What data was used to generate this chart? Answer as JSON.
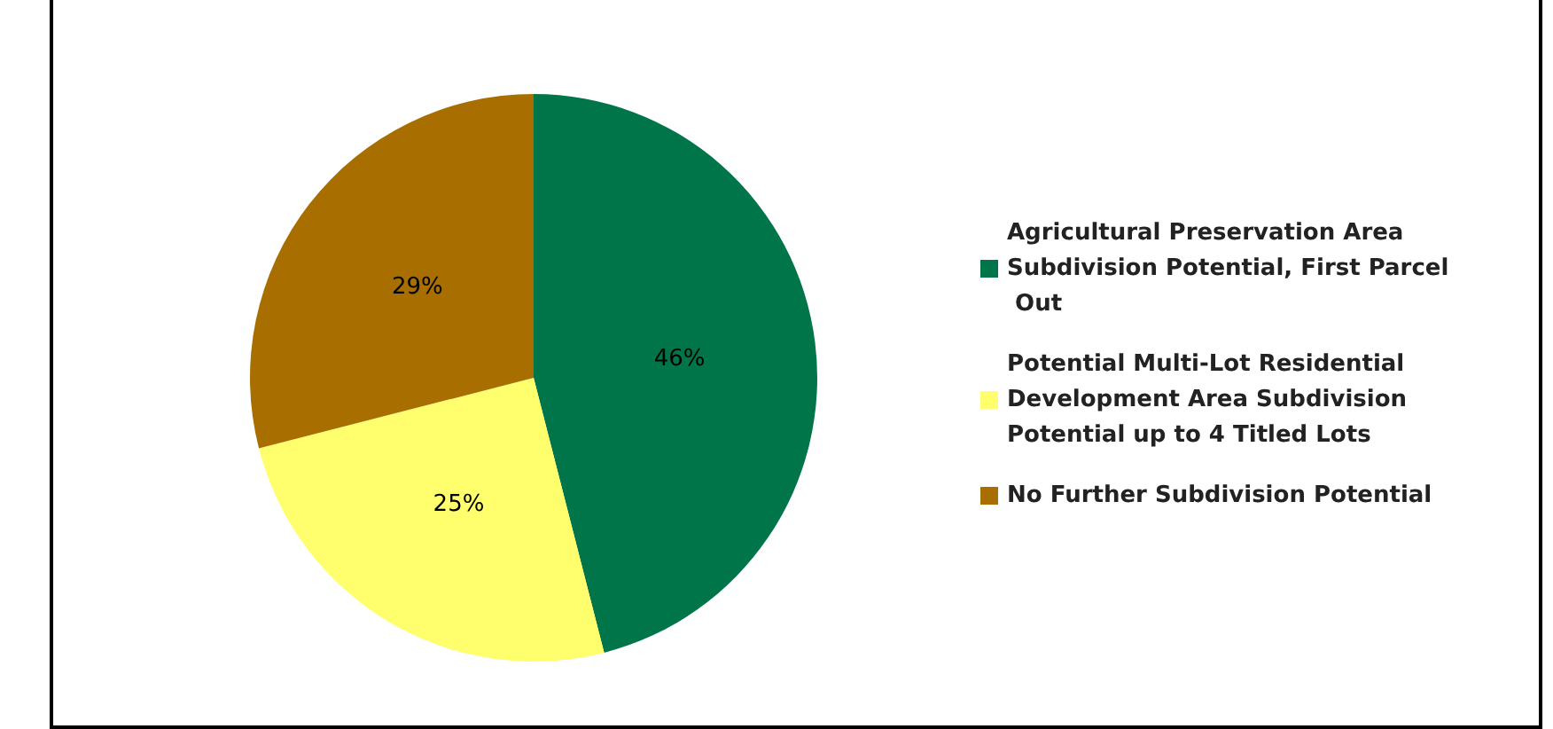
{
  "chart_data": {
    "type": "pie",
    "categories": [
      "Agricultural Preservation Area Subdivision Potential, First Parcel Out",
      "Potential Multi-Lot Residential Development Area Subdivision Potential up to 4 Titled Lots",
      "No Further Subdivision Potential"
    ],
    "values": [
      46,
      25,
      29
    ],
    "colors": [
      "#00754a",
      "#ffff6e",
      "#a86e00"
    ],
    "value_labels": [
      "46%",
      "25%",
      "29%"
    ],
    "legend": "right"
  }
}
